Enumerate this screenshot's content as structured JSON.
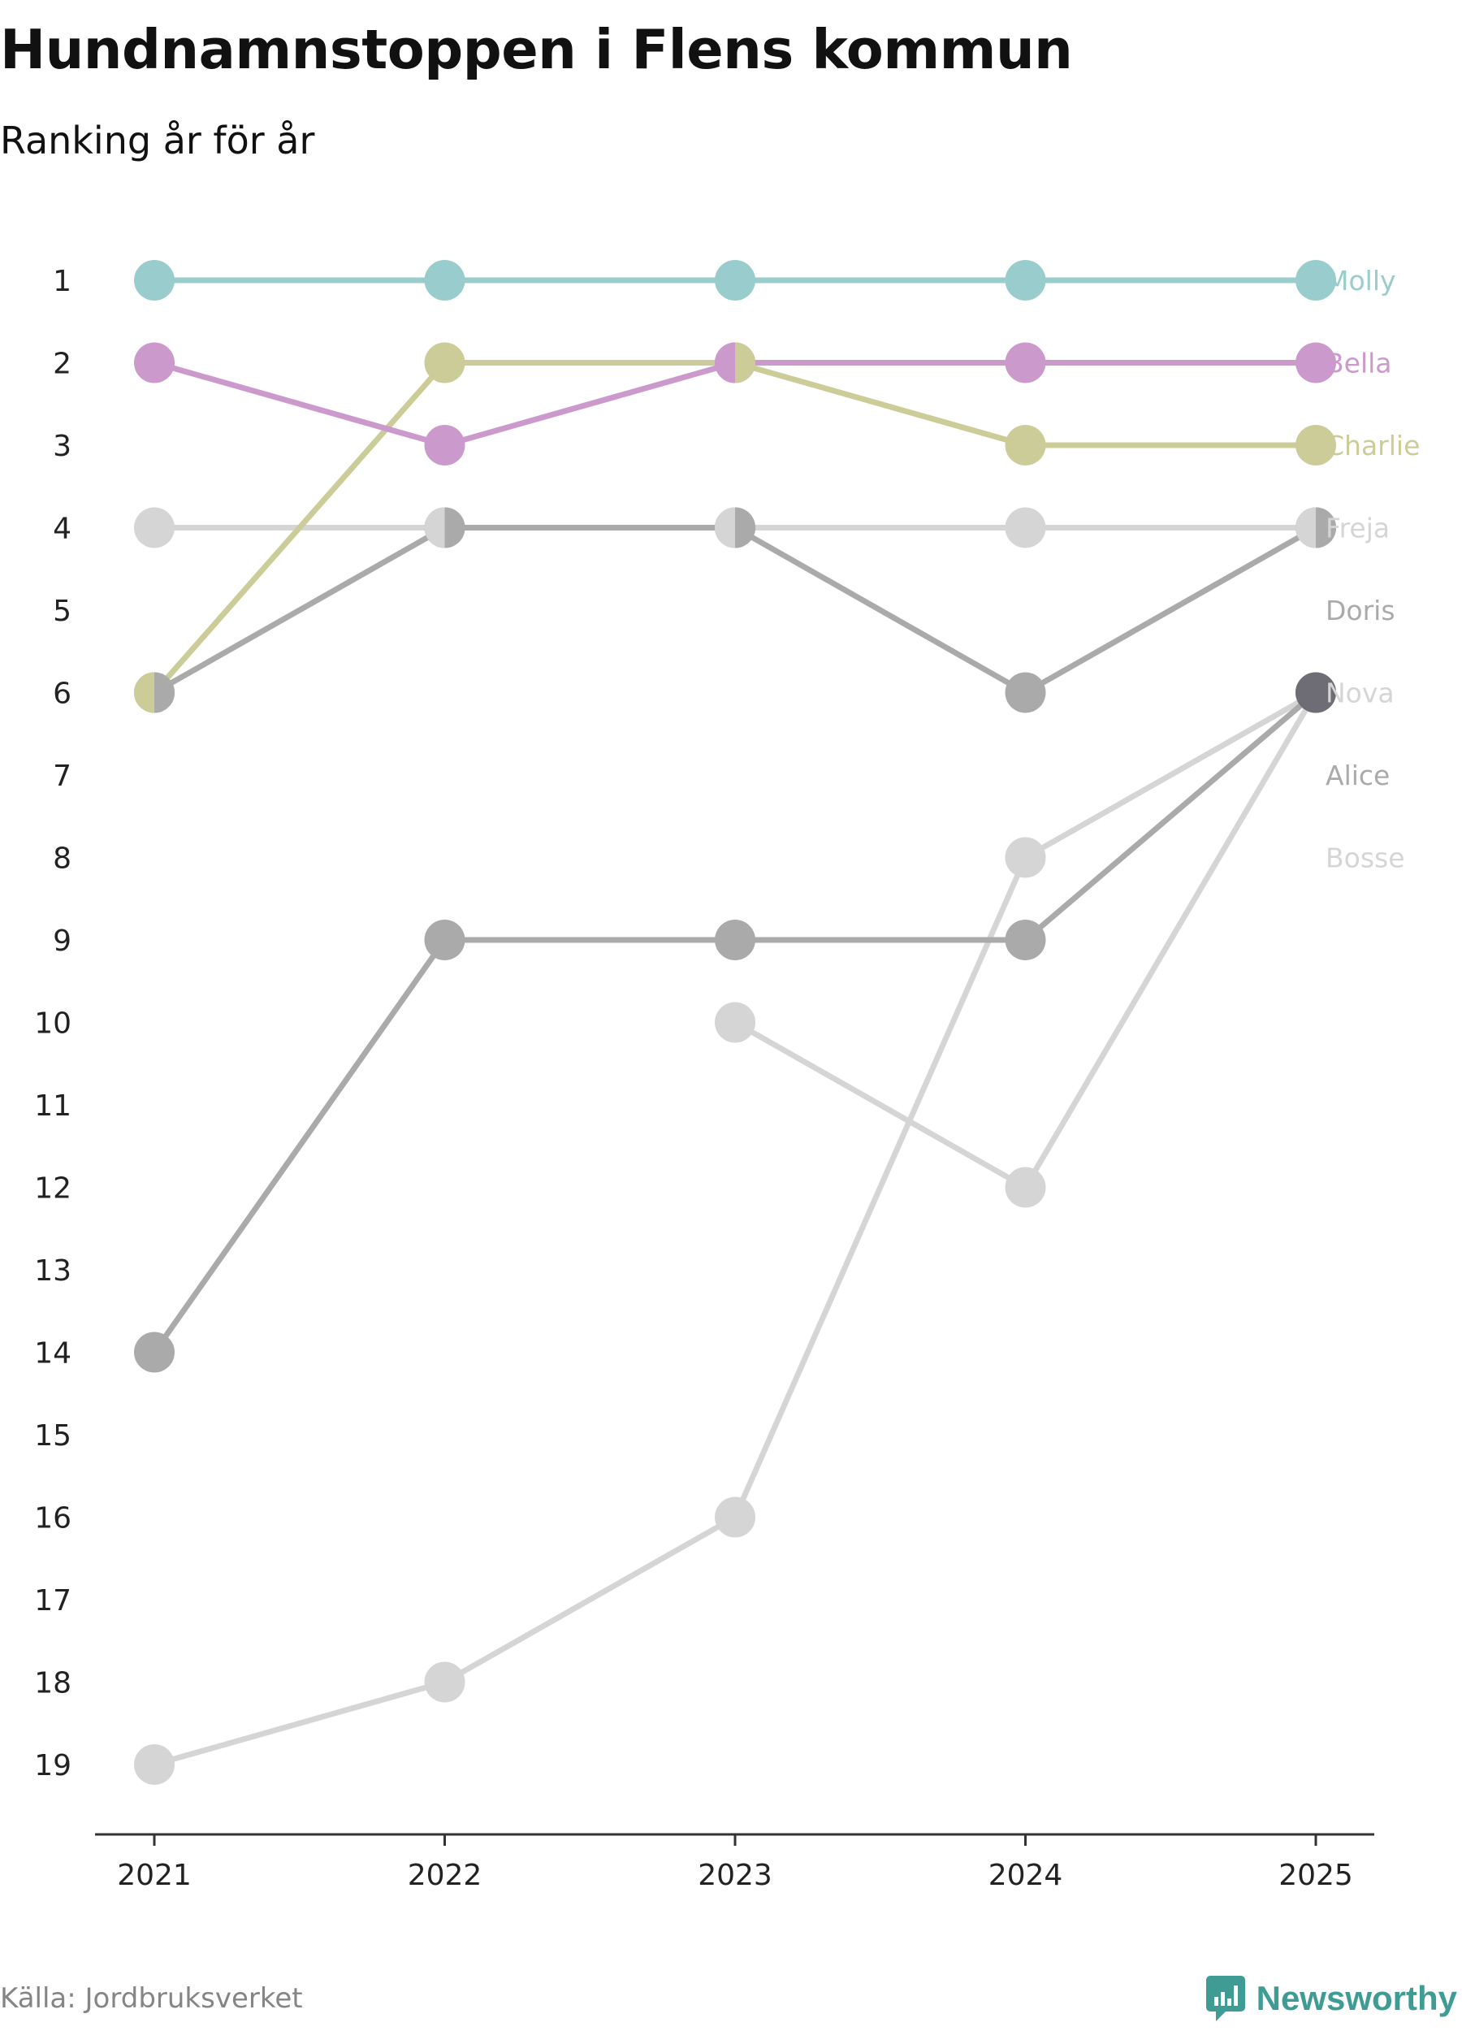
{
  "header": {
    "title": "Hundnamnstoppen i Flens kommun",
    "subtitle": "Ranking år för år"
  },
  "footer": {
    "source": "Källa: Jordbruksverket",
    "brand": "Newsworthy"
  },
  "colors": {
    "molly": "#99cccc",
    "bella": "#cc99cc",
    "charlie": "#cccc99",
    "dark_gray": "#aaaaaa",
    "light_gray": "#d5d5d5",
    "highlight": "#6e6d76",
    "brand": "#3f9c94",
    "axis": "#333333"
  },
  "chart_data": {
    "type": "line",
    "title": "Hundnamnstoppen i Flens kommun",
    "subtitle": "Ranking år för år",
    "x": [
      "2021",
      "2022",
      "2023",
      "2024",
      "2025"
    ],
    "y_ticks": [
      1,
      2,
      3,
      4,
      5,
      6,
      7,
      8,
      9,
      10,
      11,
      12,
      13,
      14,
      15,
      16,
      17,
      18,
      19
    ],
    "ylim": [
      1,
      19
    ],
    "y_inverted": true,
    "xlabel": "",
    "ylabel": "",
    "series": [
      {
        "name": "Molly",
        "values": [
          1,
          1,
          1,
          1,
          1
        ],
        "color": "#99cccc"
      },
      {
        "name": "Bella",
        "values": [
          2,
          3,
          2,
          2,
          2
        ],
        "color": "#cc99cc"
      },
      {
        "name": "Charlie",
        "values": [
          6,
          2,
          2,
          3,
          3
        ],
        "color": "#cccc99"
      },
      {
        "name": "Freja",
        "values": [
          4,
          4,
          4,
          4,
          4
        ],
        "color": "#d5d5d5"
      },
      {
        "name": "Doris",
        "values": [
          6,
          4,
          4,
          6,
          4
        ],
        "color": "#aaaaaa"
      },
      {
        "name": "Nova",
        "values": [
          null,
          null,
          10,
          12,
          6
        ],
        "color": "#d5d5d5"
      },
      {
        "name": "Alice",
        "values": [
          14,
          9,
          9,
          9,
          6
        ],
        "color": "#aaaaaa"
      },
      {
        "name": "Bosse",
        "values": [
          19,
          18,
          16,
          8,
          6
        ],
        "color": "#d5d5d5"
      }
    ]
  }
}
